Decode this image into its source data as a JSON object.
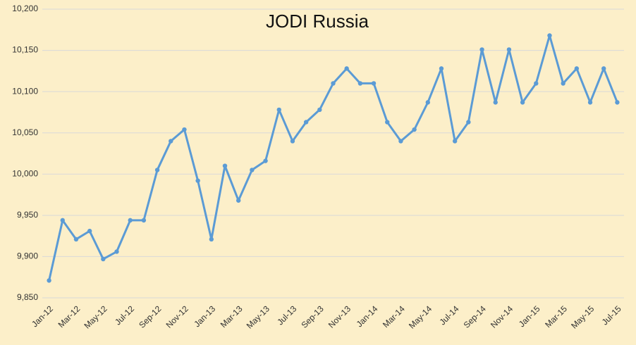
{
  "chart_data": {
    "type": "line",
    "title": "JODI Russia",
    "categories": [
      "Jan-12",
      null,
      "Mar-12",
      null,
      "May-12",
      null,
      "Jul-12",
      null,
      "Sep-12",
      null,
      "Nov-12",
      null,
      "Jan-13",
      null,
      "Mar-13",
      null,
      "May-13",
      null,
      "Jul-13",
      null,
      "Sep-13",
      null,
      "Nov-13",
      null,
      "Jan-14",
      null,
      "Mar-14",
      null,
      "May-14",
      null,
      "Jul-14",
      null,
      "Sep-14",
      null,
      "Nov-14",
      null,
      "Jan-15",
      null,
      "Mar-15",
      null,
      "May-15",
      null,
      "Jul-15"
    ],
    "values": [
      9871,
      9944,
      9921,
      9931,
      9897,
      9906,
      9944,
      9944,
      10005,
      10040,
      10054,
      9992,
      9921,
      10010,
      9968,
      10005,
      10016,
      10078,
      10040,
      10063,
      10078,
      10110,
      10128,
      10110,
      10110,
      10063,
      10040,
      10054,
      10087,
      10128,
      10040,
      10063,
      10151,
      10087,
      10151,
      10087,
      10110,
      10168,
      10110,
      10128,
      10087,
      10128,
      10087
    ],
    "color": "#5b9bd5",
    "ylim": [
      9850,
      10200
    ],
    "yticks": [
      {
        "value": 9850,
        "label": "9,850"
      },
      {
        "value": 9900,
        "label": "9,900"
      },
      {
        "value": 9950,
        "label": "9,950"
      },
      {
        "value": 10000,
        "label": "10,000"
      },
      {
        "value": 10050,
        "label": "10,050"
      },
      {
        "value": 10100,
        "label": "10,100"
      },
      {
        "value": 10150,
        "label": "10,150"
      },
      {
        "value": 10200,
        "label": "10,200"
      }
    ],
    "grid": true
  }
}
